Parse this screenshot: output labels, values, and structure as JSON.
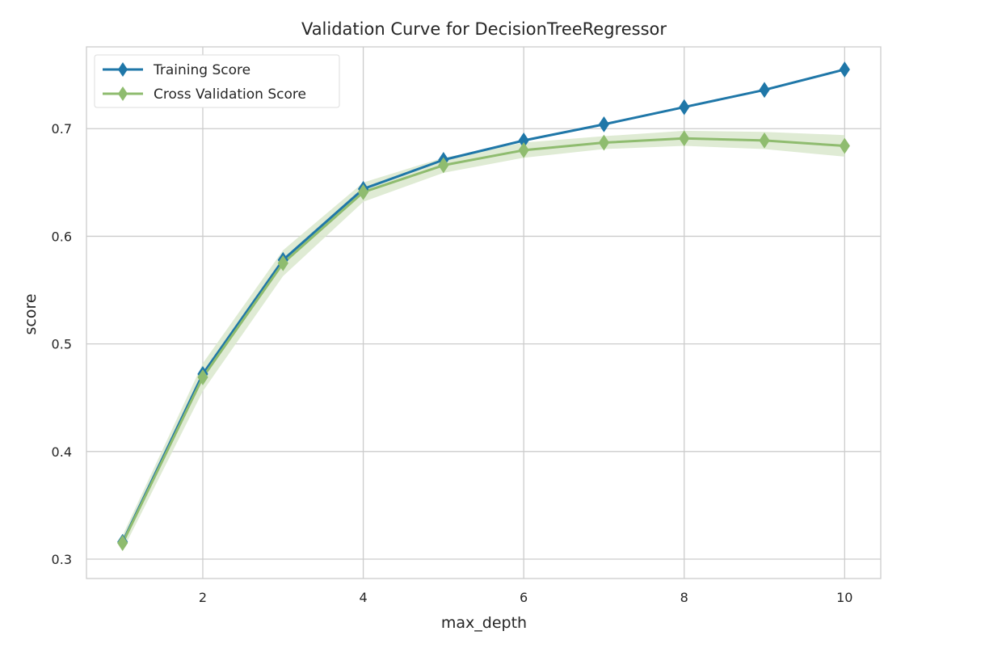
{
  "chart_data": {
    "type": "line",
    "title": "Validation Curve for DecisionTreeRegressor",
    "xlabel": "max_depth",
    "ylabel": "score",
    "xlim": [
      0.55,
      10.45
    ],
    "ylim": [
      0.282,
      0.776
    ],
    "xticks": [
      2,
      4,
      6,
      8,
      10
    ],
    "yticks": [
      0.3,
      0.4,
      0.5,
      0.6,
      0.7
    ],
    "ytick_labels": [
      "0.3",
      "0.4",
      "0.5",
      "0.6",
      "0.7"
    ],
    "grid": true,
    "legend_position": "top-left",
    "x": [
      1,
      2,
      3,
      4,
      5,
      6,
      7,
      8,
      9,
      10
    ],
    "series": [
      {
        "name": "Training Score",
        "color": "#1f77a8",
        "marker": "diamond",
        "values": [
          0.316,
          0.472,
          0.578,
          0.644,
          0.671,
          0.689,
          0.704,
          0.72,
          0.736,
          0.755
        ]
      },
      {
        "name": "Cross Validation Score",
        "color": "#8fbc6f",
        "marker": "diamond",
        "band_color": "#d9e8cc",
        "values": [
          0.315,
          0.469,
          0.575,
          0.641,
          0.666,
          0.68,
          0.687,
          0.691,
          0.689,
          0.684
        ],
        "band_low": [
          0.308,
          0.456,
          0.563,
          0.632,
          0.659,
          0.673,
          0.681,
          0.684,
          0.681,
          0.674
        ],
        "band_high": [
          0.322,
          0.482,
          0.587,
          0.65,
          0.673,
          0.687,
          0.693,
          0.698,
          0.697,
          0.694
        ]
      }
    ]
  }
}
